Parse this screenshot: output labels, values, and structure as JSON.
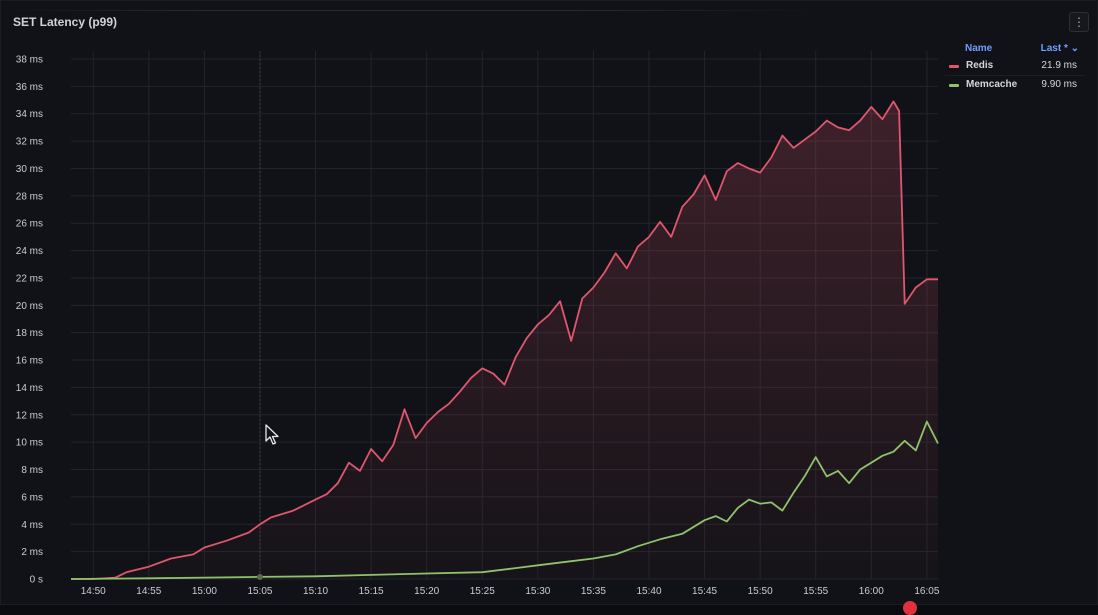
{
  "panel": {
    "title": "SET Latency (p99)",
    "menu_icon": "more-vertical-icon"
  },
  "legend": {
    "header_name": "Name",
    "header_last": "Last * ⌄",
    "items": [
      {
        "name": "Redis",
        "last": "21.9 ms",
        "color": "#e0566e"
      },
      {
        "name": "Memcache",
        "last": "9.90 ms",
        "color": "#8fc26c"
      }
    ]
  },
  "chart_data": {
    "type": "line",
    "title": "SET Latency (p99)",
    "xlabel": "",
    "ylabel": "",
    "ylim": [
      0,
      38
    ],
    "y_ticks": [
      "0 s",
      "2 ms",
      "4 ms",
      "6 ms",
      "8 ms",
      "10 ms",
      "12 ms",
      "14 ms",
      "16 ms",
      "18 ms",
      "20 ms",
      "22 ms",
      "24 ms",
      "26 ms",
      "28 ms",
      "30 ms",
      "32 ms",
      "34 ms",
      "36 ms",
      "38 ms"
    ],
    "x_ticks": [
      "14:50",
      "14:55",
      "15:00",
      "15:05",
      "15:10",
      "15:15",
      "15:20",
      "15:25",
      "15:30",
      "15:35",
      "15:40",
      "15:45",
      "15:50",
      "15:55",
      "16:00",
      "16:05"
    ],
    "x_range": [
      "14:48",
      "16:06"
    ],
    "grid": true,
    "legend_position": "right",
    "x_unit": "minutes",
    "series": [
      {
        "name": "Redis",
        "color": "#e0566e",
        "fill": true,
        "points": [
          [
            "14:48",
            0.0
          ],
          [
            "14:50",
            0.0
          ],
          [
            "14:52",
            0.1
          ],
          [
            "14:53",
            0.5
          ],
          [
            "14:55",
            0.9
          ],
          [
            "14:57",
            1.5
          ],
          [
            "14:59",
            1.8
          ],
          [
            "15:00",
            2.3
          ],
          [
            "15:02",
            2.8
          ],
          [
            "15:04",
            3.4
          ],
          [
            "15:05",
            4.0
          ],
          [
            "15:06",
            4.5
          ],
          [
            "15:08",
            5.0
          ],
          [
            "15:10",
            5.8
          ],
          [
            "15:11",
            6.2
          ],
          [
            "15:12",
            7.0
          ],
          [
            "15:13",
            8.5
          ],
          [
            "15:14",
            7.9
          ],
          [
            "15:15",
            9.5
          ],
          [
            "15:16",
            8.6
          ],
          [
            "15:17",
            9.8
          ],
          [
            "15:18",
            12.4
          ],
          [
            "15:19",
            10.3
          ],
          [
            "15:20",
            11.4
          ],
          [
            "15:21",
            12.2
          ],
          [
            "15:22",
            12.8
          ],
          [
            "15:23",
            13.7
          ],
          [
            "15:24",
            14.7
          ],
          [
            "15:25",
            15.4
          ],
          [
            "15:26",
            15.0
          ],
          [
            "15:27",
            14.2
          ],
          [
            "15:28",
            16.2
          ],
          [
            "15:29",
            17.6
          ],
          [
            "15:30",
            18.6
          ],
          [
            "15:31",
            19.3
          ],
          [
            "15:32",
            20.3
          ],
          [
            "15:33",
            17.4
          ],
          [
            "15:34",
            20.5
          ],
          [
            "15:35",
            21.3
          ],
          [
            "15:36",
            22.4
          ],
          [
            "15:37",
            23.8
          ],
          [
            "15:38",
            22.7
          ],
          [
            "15:39",
            24.3
          ],
          [
            "15:40",
            25.0
          ],
          [
            "15:41",
            26.1
          ],
          [
            "15:42",
            25.0
          ],
          [
            "15:43",
            27.2
          ],
          [
            "15:44",
            28.1
          ],
          [
            "15:45",
            29.5
          ],
          [
            "15:46",
            27.7
          ],
          [
            "15:47",
            29.8
          ],
          [
            "15:48",
            30.4
          ],
          [
            "15:49",
            30.0
          ],
          [
            "15:50",
            29.7
          ],
          [
            "15:51",
            30.8
          ],
          [
            "15:52",
            32.4
          ],
          [
            "15:53",
            31.5
          ],
          [
            "15:54",
            32.1
          ],
          [
            "15:55",
            32.7
          ],
          [
            "15:56",
            33.5
          ],
          [
            "15:57",
            33.0
          ],
          [
            "15:58",
            32.8
          ],
          [
            "15:59",
            33.5
          ],
          [
            "16:00",
            34.5
          ],
          [
            "16:01",
            33.6
          ],
          [
            "16:02",
            34.9
          ],
          [
            "16:02.5",
            34.2
          ],
          [
            "16:03",
            20.1
          ],
          [
            "16:04",
            21.3
          ],
          [
            "16:05",
            21.9
          ],
          [
            "16:06",
            21.9
          ]
        ]
      },
      {
        "name": "Memcache",
        "color": "#8fc26c",
        "fill": false,
        "points": [
          [
            "14:48",
            0.0
          ],
          [
            "14:55",
            0.05
          ],
          [
            "15:00",
            0.1
          ],
          [
            "15:05",
            0.15
          ],
          [
            "15:10",
            0.2
          ],
          [
            "15:15",
            0.3
          ],
          [
            "15:20",
            0.4
          ],
          [
            "15:25",
            0.5
          ],
          [
            "15:28",
            0.8
          ],
          [
            "15:30",
            1.0
          ],
          [
            "15:33",
            1.3
          ],
          [
            "15:35",
            1.5
          ],
          [
            "15:37",
            1.8
          ],
          [
            "15:39",
            2.4
          ],
          [
            "15:41",
            2.9
          ],
          [
            "15:43",
            3.3
          ],
          [
            "15:45",
            4.3
          ],
          [
            "15:46",
            4.6
          ],
          [
            "15:47",
            4.2
          ],
          [
            "15:48",
            5.2
          ],
          [
            "15:49",
            5.8
          ],
          [
            "15:50",
            5.5
          ],
          [
            "15:51",
            5.6
          ],
          [
            "15:52",
            5.0
          ],
          [
            "15:53",
            6.3
          ],
          [
            "15:54",
            7.5
          ],
          [
            "15:55",
            8.9
          ],
          [
            "15:56",
            7.5
          ],
          [
            "15:57",
            7.9
          ],
          [
            "15:58",
            7.0
          ],
          [
            "15:59",
            8.0
          ],
          [
            "16:00",
            8.5
          ],
          [
            "16:01",
            9.0
          ],
          [
            "16:02",
            9.3
          ],
          [
            "16:03",
            10.1
          ],
          [
            "16:04",
            9.4
          ],
          [
            "16:05",
            11.5
          ],
          [
            "16:06",
            9.9
          ]
        ]
      }
    ]
  }
}
